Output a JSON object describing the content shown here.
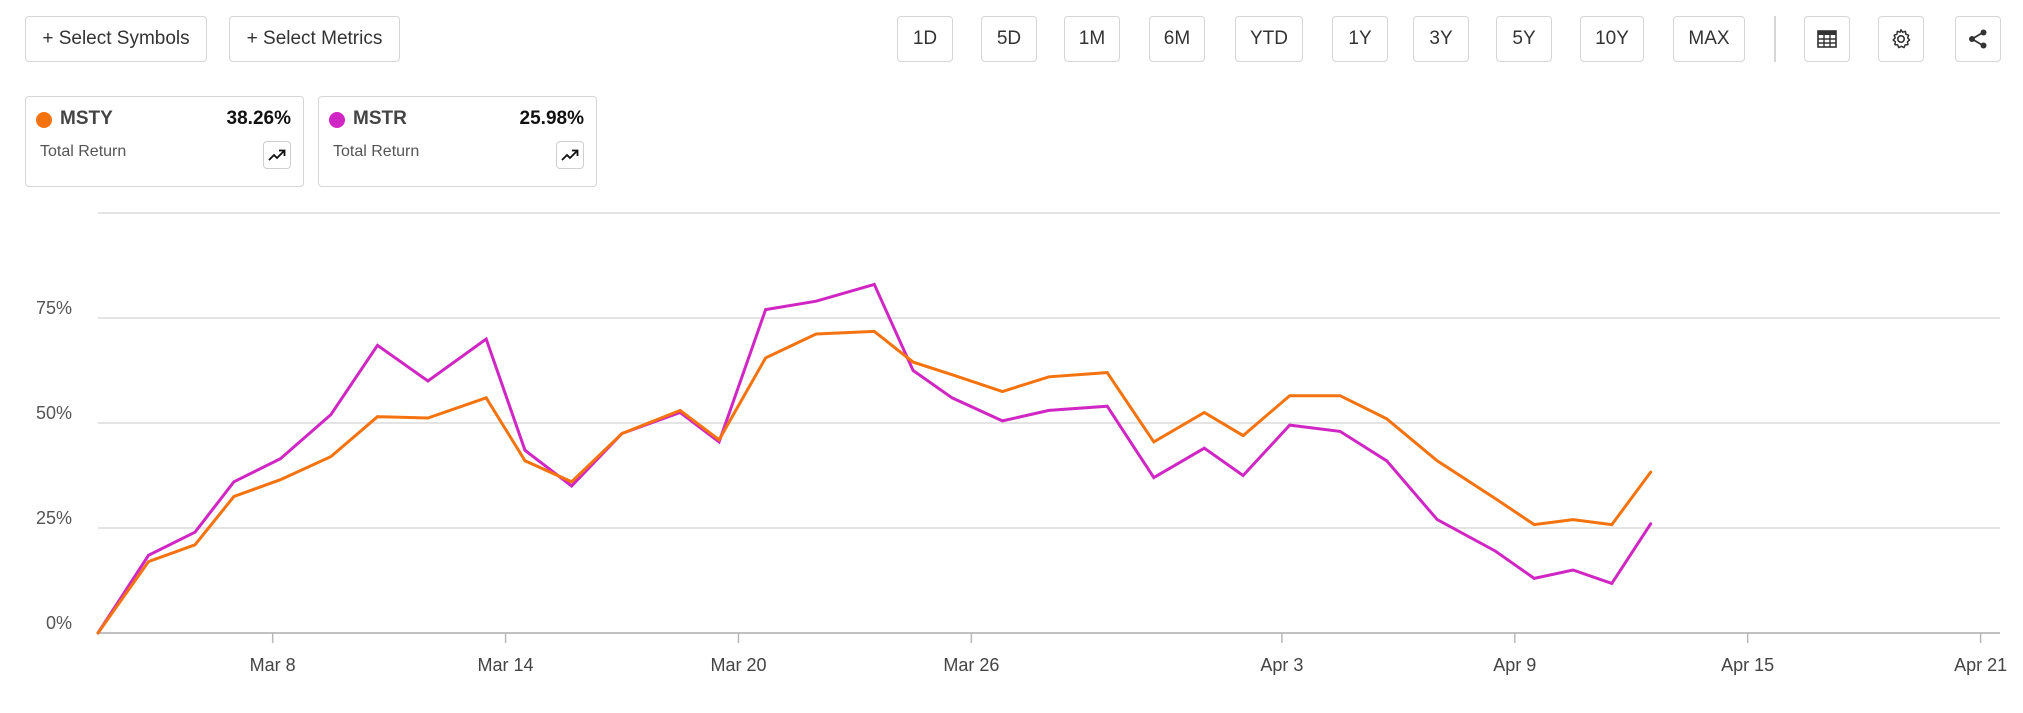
{
  "toolbar": {
    "select_symbols": "+ Select Symbols",
    "select_metrics": "+ Select Metrics",
    "ranges": [
      "1D",
      "5D",
      "1M",
      "6M",
      "YTD",
      "1Y",
      "3Y",
      "5Y",
      "10Y",
      "MAX"
    ]
  },
  "icons": {
    "table": "table-icon",
    "settings": "gear-icon",
    "share": "share-icon",
    "trend": "trend-up-icon"
  },
  "cards": [
    {
      "symbol": "MSTY",
      "value": "38.26%",
      "metric": "Total Return",
      "color": "#f5730f"
    },
    {
      "symbol": "MSTR",
      "value": "25.98%",
      "metric": "Total Return",
      "color": "#d026c4"
    }
  ],
  "chart_data": {
    "type": "line",
    "x": [
      "Mar 5",
      "Mar 6",
      "Mar 7",
      "Mar 8",
      "Mar 9",
      "Mar 10",
      "Mar 11",
      "Mar 12",
      "Mar 13",
      "Mar 14",
      "Mar 15",
      "Mar 16",
      "Mar 17",
      "Mar 18",
      "Mar 19",
      "Mar 20",
      "Mar 21",
      "Mar 22",
      "Mar 23",
      "Mar 24",
      "Mar 25",
      "Mar 26",
      "Mar 27",
      "Mar 28",
      "Mar 29",
      "Mar 30",
      "Mar 31",
      "Apr 1",
      "Apr 2",
      "Apr 3",
      "Apr 4",
      "Apr 5",
      "Apr 6",
      "Apr 7",
      "Apr 8",
      "Apr 9",
      "Apr 10",
      "Apr 11",
      "Apr 12",
      "Apr 13",
      "Apr 14",
      "Apr 15",
      "Apr 16",
      "Apr 17",
      "Apr 18",
      "Apr 19",
      "Apr 20",
      "Apr 21",
      "Apr 22"
    ],
    "x_domain": [
      "Mar 3.5",
      "Apr 21.5"
    ],
    "xticks": [
      "Mar 8",
      "Mar 14",
      "Mar 20",
      "Mar 26",
      "Apr 3",
      "Apr 9",
      "Apr 15",
      "Apr 21"
    ],
    "yticks": [
      0,
      25,
      50,
      75
    ],
    "ytick_labels": [
      "0%",
      "25%",
      "50%",
      "75%"
    ],
    "ylim": [
      0,
      100
    ],
    "series": [
      {
        "name": "MSTY",
        "color": "#f5730f",
        "points": [
          [
            "Mar 3.5",
            0
          ],
          [
            "Mar 4.8",
            17
          ],
          [
            "Mar 6",
            21
          ],
          [
            "Mar 7",
            32.5
          ],
          [
            "Mar 8.2",
            36.5
          ],
          [
            "Mar 9.5",
            42
          ],
          [
            "Mar 10.7",
            51.5
          ],
          [
            "Mar 12",
            51.2
          ],
          [
            "Mar 13.5",
            56
          ],
          [
            "Mar 14.5",
            41
          ],
          [
            "Mar 15.7",
            36
          ],
          [
            "Mar 17",
            47.5
          ],
          [
            "Mar 18.5",
            53
          ],
          [
            "Mar 19.5",
            46
          ],
          [
            "Mar 20.7",
            65.5
          ],
          [
            "Mar 22",
            71.2
          ],
          [
            "Mar 23.5",
            71.8
          ],
          [
            "Mar 24.5",
            64.5
          ],
          [
            "Mar 25.5",
            61.5
          ],
          [
            "Mar 26.8",
            57.5
          ],
          [
            "Mar 28",
            61
          ],
          [
            "Mar 29.5",
            62
          ],
          [
            "Mar 30.7",
            45.5
          ],
          [
            "Apr 1",
            52.5
          ],
          [
            "Apr 2",
            47
          ],
          [
            "Apr 3.2",
            56.5
          ],
          [
            "Apr 4.5",
            56.5
          ],
          [
            "Apr 5.7",
            51
          ],
          [
            "Apr 7",
            41
          ],
          [
            "Apr 8.5",
            32
          ],
          [
            "Apr 9.5",
            25.8
          ],
          [
            "Apr 10.5",
            27
          ],
          [
            "Apr 11.5",
            25.8
          ],
          [
            "Apr 12.5",
            38.3
          ]
        ]
      },
      {
        "name": "MSTR",
        "color": "#d026c4",
        "points": [
          [
            "Mar 3.5",
            0
          ],
          [
            "Mar 4.8",
            18.5
          ],
          [
            "Mar 6",
            24
          ],
          [
            "Mar 7",
            36
          ],
          [
            "Mar 8.2",
            41.5
          ],
          [
            "Mar 9.5",
            52
          ],
          [
            "Mar 10.7",
            68.5
          ],
          [
            "Mar 12",
            60
          ],
          [
            "Mar 13.5",
            70
          ],
          [
            "Mar 14.5",
            43.5
          ],
          [
            "Mar 15.7",
            35
          ],
          [
            "Mar 17",
            47.5
          ],
          [
            "Mar 18.5",
            52.5
          ],
          [
            "Mar 19.5",
            45.5
          ],
          [
            "Mar 20.7",
            77
          ],
          [
            "Mar 22",
            79
          ],
          [
            "Mar 23.5",
            83
          ],
          [
            "Mar 24.5",
            62.5
          ],
          [
            "Mar 25.5",
            56
          ],
          [
            "Mar 26.8",
            50.5
          ],
          [
            "Mar 28",
            53
          ],
          [
            "Mar 29.5",
            54
          ],
          [
            "Mar 30.7",
            37
          ],
          [
            "Apr 1",
            44
          ],
          [
            "Apr 2",
            37.5
          ],
          [
            "Apr 3.2",
            49.5
          ],
          [
            "Apr 4.5",
            48
          ],
          [
            "Apr 5.7",
            41
          ],
          [
            "Apr 7",
            27
          ],
          [
            "Apr 8.5",
            19.5
          ],
          [
            "Apr 9.5",
            13
          ],
          [
            "Apr 10.5",
            15
          ],
          [
            "Apr 11.5",
            11.8
          ],
          [
            "Apr 12.5",
            26
          ]
        ]
      }
    ],
    "legend": "top-left",
    "grid": true
  }
}
